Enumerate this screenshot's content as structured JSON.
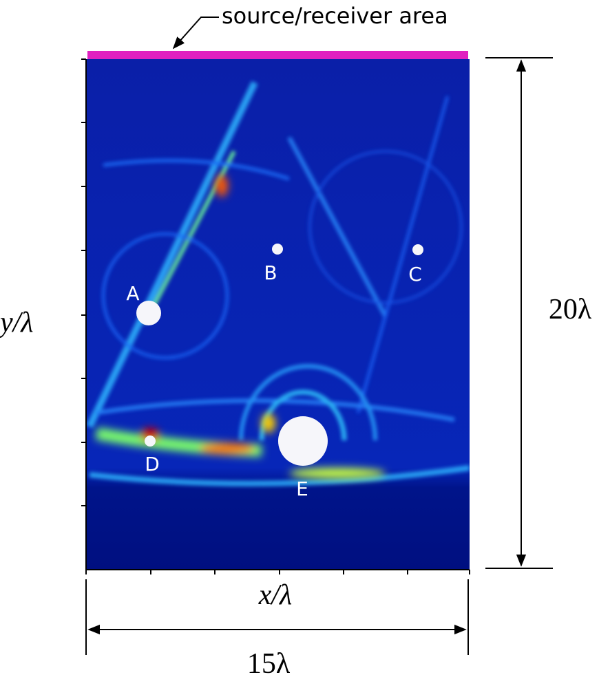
{
  "annotation": "source/receiver area",
  "axes": {
    "y_label": "y/λ",
    "x_label": "x/λ"
  },
  "dimensions": {
    "height": "20λ",
    "width": "15λ"
  },
  "points": [
    {
      "label": "A"
    },
    {
      "label": "B"
    },
    {
      "label": "C"
    },
    {
      "label": "D"
    },
    {
      "label": "E"
    }
  ]
}
